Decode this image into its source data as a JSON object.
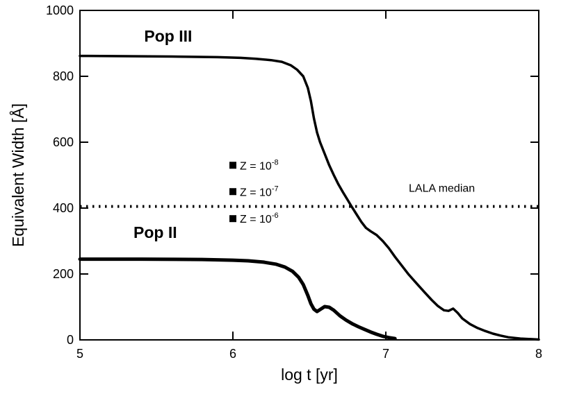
{
  "chart_data": {
    "type": "line",
    "title": "",
    "xlabel": "log t [yr]",
    "ylabel": "Equivalent Width [Å]",
    "xlim": [
      5,
      8
    ],
    "ylim": [
      0,
      1000
    ],
    "xticks": [
      5,
      6,
      7,
      8
    ],
    "yticks": [
      0,
      200,
      400,
      600,
      800,
      1000
    ],
    "grid": false,
    "legend_position": "inside-left-middle",
    "series": [
      {
        "name": "Pop III",
        "stroke_width": 3.5,
        "label_pos": {
          "x": 5.42,
          "y": 905
        },
        "points": [
          [
            5.0,
            862
          ],
          [
            5.3,
            861
          ],
          [
            5.6,
            860
          ],
          [
            5.9,
            858
          ],
          [
            6.05,
            856
          ],
          [
            6.15,
            853
          ],
          [
            6.25,
            849
          ],
          [
            6.32,
            844
          ],
          [
            6.38,
            833
          ],
          [
            6.42,
            820
          ],
          [
            6.46,
            800
          ],
          [
            6.49,
            765
          ],
          [
            6.51,
            725
          ],
          [
            6.53,
            672
          ],
          [
            6.55,
            630
          ],
          [
            6.57,
            600
          ],
          [
            6.6,
            565
          ],
          [
            6.63,
            530
          ],
          [
            6.66,
            500
          ],
          [
            6.69,
            472
          ],
          [
            6.72,
            448
          ],
          [
            6.75,
            425
          ],
          [
            6.78,
            402
          ],
          [
            6.81,
            380
          ],
          [
            6.84,
            358
          ],
          [
            6.87,
            340
          ],
          [
            6.9,
            330
          ],
          [
            6.94,
            318
          ],
          [
            6.98,
            300
          ],
          [
            7.02,
            278
          ],
          [
            7.06,
            252
          ],
          [
            7.1,
            228
          ],
          [
            7.15,
            198
          ],
          [
            7.2,
            172
          ],
          [
            7.25,
            146
          ],
          [
            7.3,
            121
          ],
          [
            7.34,
            103
          ],
          [
            7.38,
            90
          ],
          [
            7.41,
            88
          ],
          [
            7.44,
            95
          ],
          [
            7.47,
            82
          ],
          [
            7.5,
            65
          ],
          [
            7.55,
            48
          ],
          [
            7.6,
            36
          ],
          [
            7.65,
            27
          ],
          [
            7.7,
            19
          ],
          [
            7.75,
            13
          ],
          [
            7.8,
            8
          ],
          [
            7.88,
            4
          ],
          [
            8.0,
            1
          ]
        ]
      },
      {
        "name": "Pop II",
        "stroke_width": 5,
        "label_pos": {
          "x": 5.35,
          "y": 310
        },
        "points": [
          [
            5.0,
            245
          ],
          [
            5.4,
            245
          ],
          [
            5.8,
            244
          ],
          [
            6.0,
            242
          ],
          [
            6.1,
            240
          ],
          [
            6.2,
            236
          ],
          [
            6.28,
            230
          ],
          [
            6.34,
            221
          ],
          [
            6.39,
            208
          ],
          [
            6.43,
            190
          ],
          [
            6.46,
            168
          ],
          [
            6.49,
            135
          ],
          [
            6.51,
            110
          ],
          [
            6.53,
            93
          ],
          [
            6.55,
            86
          ],
          [
            6.57,
            92
          ],
          [
            6.6,
            101
          ],
          [
            6.63,
            99
          ],
          [
            6.66,
            90
          ],
          [
            6.7,
            73
          ],
          [
            6.74,
            60
          ],
          [
            6.78,
            49
          ],
          [
            6.82,
            40
          ],
          [
            6.86,
            32
          ],
          [
            6.9,
            24
          ],
          [
            6.94,
            17
          ],
          [
            6.98,
            11
          ],
          [
            7.02,
            7
          ],
          [
            7.06,
            4
          ]
        ]
      }
    ],
    "reference_line": {
      "label": "LALA median",
      "y": 405,
      "style": "dotted",
      "label_pos": {
        "x": 7.15,
        "y": 450
      }
    },
    "legend_markers": [
      {
        "label": "Z = 10^-8",
        "x": 6.0,
        "y": 530
      },
      {
        "label": "Z = 10^-7",
        "x": 6.0,
        "y": 450
      },
      {
        "label": "Z = 10^-6",
        "x": 6.0,
        "y": 368
      }
    ],
    "colors": {
      "line": "#000000",
      "background": "#ffffff"
    }
  }
}
